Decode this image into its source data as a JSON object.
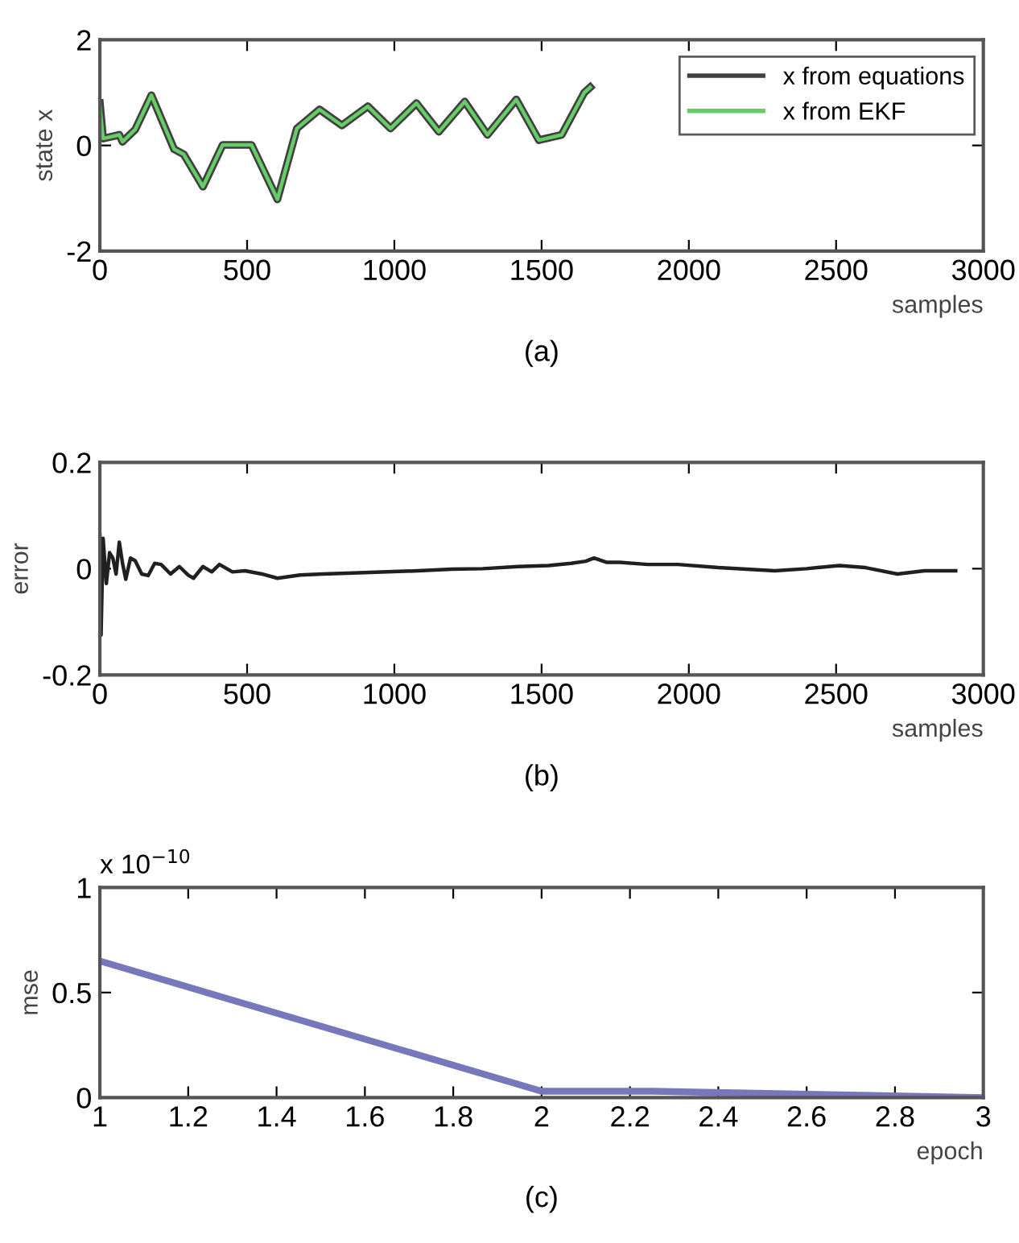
{
  "chart_data": [
    {
      "type": "line",
      "ylabel": "state x",
      "xlabel": "samples",
      "annotations": [
        "(a)"
      ],
      "xlim": [
        0,
        3000
      ],
      "ylim": [
        -2,
        2
      ],
      "xticks": [
        0,
        500,
        1000,
        1500,
        2000,
        2500,
        3000
      ],
      "yticks": [
        -2,
        0,
        2
      ],
      "grid": false,
      "legend": "top right",
      "series": [
        {
          "name": "x from equations",
          "color": "#404040",
          "x": [
            0,
            11,
            66,
            77,
            120,
            175,
            252,
            285,
            350,
            417,
            515,
            603,
            669,
            746,
            822,
            910,
            987,
            1075,
            1151,
            1239,
            1316,
            1414,
            1491,
            1568,
            1645,
            1665
          ],
          "values": [
            0.8,
            0.13,
            0.2,
            0.07,
            0.3,
            0.95,
            -0.07,
            -0.17,
            -0.78,
            0.01,
            0.01,
            -1.02,
            0.32,
            0.68,
            0.38,
            0.74,
            0.32,
            0.8,
            0.26,
            0.83,
            0.2,
            0.87,
            0.1,
            0.2,
            1.0,
            1.1
          ]
        },
        {
          "name": "x from EKF",
          "color": "#66cc66",
          "x": [
            0,
            11,
            66,
            77,
            120,
            175,
            252,
            285,
            350,
            417,
            515,
            603,
            669,
            746,
            822,
            910,
            987,
            1075,
            1151,
            1239,
            1316,
            1414,
            1491,
            1568,
            1645,
            1665
          ],
          "values": [
            0.75,
            0.13,
            0.2,
            0.07,
            0.3,
            0.95,
            -0.07,
            -0.17,
            -0.78,
            0.01,
            0.01,
            -1.02,
            0.32,
            0.68,
            0.38,
            0.74,
            0.32,
            0.8,
            0.26,
            0.83,
            0.2,
            0.87,
            0.1,
            0.2,
            1.0,
            1.1
          ]
        }
      ]
    },
    {
      "type": "line",
      "ylabel": "error",
      "xlabel": "samples",
      "annotations": [
        "(b)"
      ],
      "xlim": [
        0,
        3000
      ],
      "ylim": [
        -0.2,
        0.2
      ],
      "xticks": [
        0,
        500,
        1000,
        1500,
        2000,
        2500,
        3000
      ],
      "yticks": [
        -0.2,
        0,
        0.2
      ],
      "grid": false,
      "series": [
        {
          "color": "#202020",
          "x": [
            0,
            4,
            11,
            22,
            33,
            44,
            55,
            66,
            77,
            88,
            104,
            120,
            142,
            164,
            186,
            208,
            240,
            270,
            300,
            318,
            350,
            380,
            406,
            450,
            493,
            550,
            603,
            680,
            757,
            860,
            976,
            1080,
            1195,
            1300,
            1420,
            1524,
            1600,
            1650,
            1678,
            1720,
            1765,
            1860,
            1963,
            2100,
            2292,
            2400,
            2511,
            2600,
            2708,
            2800,
            2906
          ],
          "values": [
            0.063,
            -0.125,
            0.057,
            -0.028,
            0.03,
            0.02,
            -0.01,
            0.05,
            0.01,
            -0.02,
            0.02,
            0.015,
            -0.01,
            -0.013,
            0.01,
            0.008,
            -0.01,
            0.004,
            -0.012,
            -0.018,
            0.004,
            -0.006,
            0.008,
            -0.006,
            -0.004,
            -0.01,
            -0.018,
            -0.012,
            -0.01,
            -0.008,
            -0.006,
            -0.004,
            -0.001,
            0.0,
            0.004,
            0.006,
            0.01,
            0.014,
            0.02,
            0.012,
            0.012,
            0.008,
            0.008,
            0.002,
            -0.004,
            0.0,
            0.006,
            0.002,
            -0.01,
            -0.004,
            -0.004
          ]
        }
      ]
    },
    {
      "type": "line",
      "ylabel": "mse",
      "xlabel": "epoch",
      "annotations": [
        "x 10$^{−10}$",
        "(c)"
      ],
      "xlim": [
        1,
        3
      ],
      "ylim": [
        0,
        1
      ],
      "xticks": [
        1,
        1.2,
        1.4,
        1.6,
        1.8,
        2,
        2.2,
        2.4,
        2.6,
        2.8,
        3
      ],
      "yticks": [
        0,
        0.5,
        1
      ],
      "grid": false,
      "series": [
        {
          "color": "#7777bb",
          "x": [
            1,
            2,
            2.25,
            2.75,
            3
          ],
          "values": [
            0.65,
            0.03,
            0.03,
            0.01,
            0.0
          ]
        }
      ]
    }
  ]
}
